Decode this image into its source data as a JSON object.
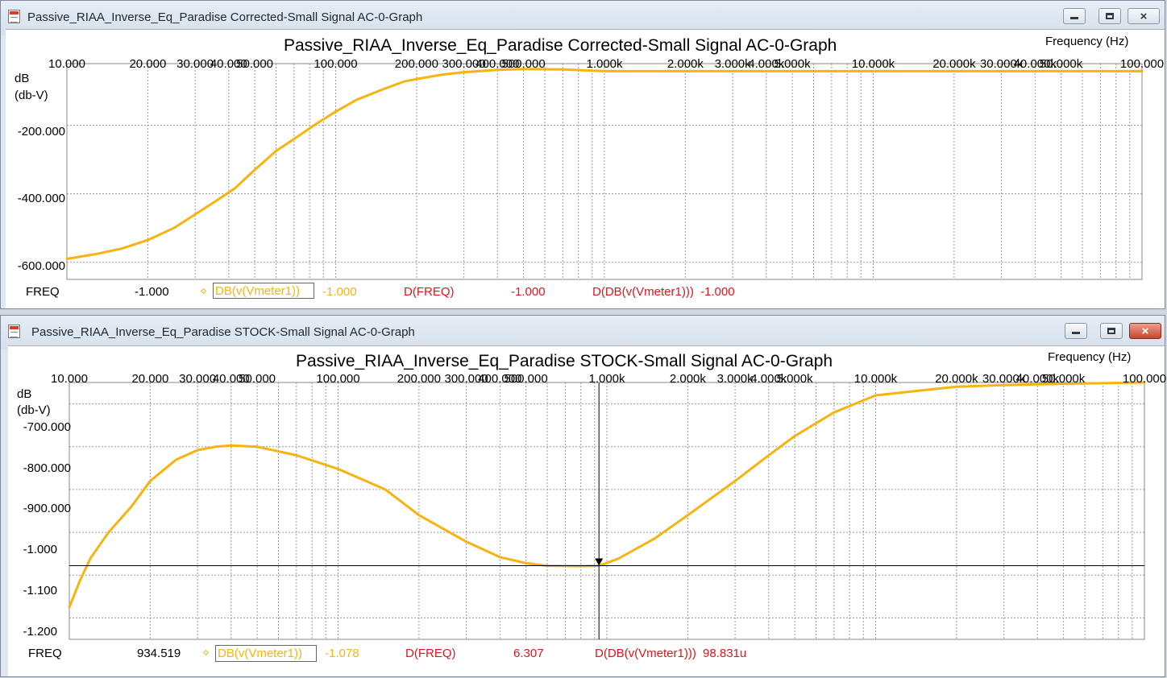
{
  "windows": [
    {
      "title": "Passive_RIAA_Inverse_Eq_Paradise Corrected-Small Signal AC-0-Graph",
      "graph_title": "Passive_RIAA_Inverse_Eq_Paradise Corrected-Small Signal AC-0-Graph",
      "x_axis_label": "Frequency  (Hz)",
      "y_unit_line1": "dB",
      "y_unit_line2": "(db-V)",
      "x_tick_labels": [
        "10.000",
        "20.000",
        "30.000",
        "40.000",
        "50.000",
        "100.000",
        "200.000",
        "300.000",
        "400.000",
        "500.000",
        "1.000k",
        "2.000k",
        "3.000k",
        "4.000k",
        "5.000k",
        "10.000k",
        "20.000k",
        "30.000k",
        "40.000k",
        "50.000k",
        "100.000"
      ],
      "y_tick_labels": [
        "-200.000",
        "-400.000",
        "-600.000"
      ],
      "legend": {
        "freq_label": "FREQ",
        "freq_value": "-1.000",
        "trace_name": "DB(v(Vmeter1))",
        "trace_value": "-1.000",
        "dfreq_label": "D(FREQ)",
        "dfreq_value": "-1.000",
        "dtrace_label": "D(DB(v(Vmeter1)))",
        "dtrace_value": "-1.000"
      },
      "active": false
    },
    {
      "title": "Passive_RIAA_Inverse_Eq_Paradise STOCK-Small Signal AC-0-Graph",
      "graph_title": "Passive_RIAA_Inverse_Eq_Paradise STOCK-Small Signal AC-0-Graph",
      "x_axis_label": "Frequency  (Hz)",
      "y_unit_line1": "dB",
      "y_unit_line2": "(db-V)",
      "x_tick_labels": [
        "10.000",
        "20.000",
        "30.000",
        "40.000",
        "50.000",
        "100.000",
        "200.000",
        "300.000",
        "400.000",
        "500.000",
        "1.000k",
        "2.000k",
        "3.000k",
        "4.000k",
        "5.000k",
        "10.000k",
        "20.000k",
        "30.000k",
        "40.000k",
        "50.000k",
        "100.000"
      ],
      "y_tick_labels": [
        "-700.000",
        "-800.000",
        "-900.000",
        "-1.000",
        "-1.100",
        "-1.200"
      ],
      "legend": {
        "freq_label": "FREQ",
        "freq_value": "934.519",
        "trace_name": "DB(v(Vmeter1))",
        "trace_value": "-1.078",
        "dfreq_label": "D(FREQ)",
        "dfreq_value": "6.307",
        "dtrace_label": "D(DB(v(Vmeter1)))",
        "dtrace_value": "98.831u"
      },
      "active": true
    }
  ],
  "chart_data": [
    {
      "type": "line",
      "title": "Passive_RIAA_Inverse_Eq_Paradise Corrected-Small Signal AC-0-Graph",
      "xlabel": "Frequency  (Hz)",
      "ylabel": "dB (db-V)",
      "x_scale": "log",
      "xlim": [
        10,
        100000
      ],
      "ylim": [
        -650,
        -20
      ],
      "grid": true,
      "series": [
        {
          "name": "DB(v(Vmeter1))",
          "color": "#f7b30f",
          "x": [
            10,
            13,
            16,
            20,
            25,
            30,
            36,
            42,
            50,
            60,
            70,
            85,
            100,
            120,
            150,
            180,
            200,
            250,
            300,
            400,
            500,
            700,
            1000,
            2000,
            5000,
            10000,
            30000,
            100000
          ],
          "y": [
            -590,
            -575,
            -560,
            -535,
            -500,
            -460,
            -420,
            -385,
            -330,
            -275,
            -240,
            -195,
            -160,
            -125,
            -95,
            -72,
            -65,
            -52,
            -45,
            -38,
            -36,
            -37,
            -42,
            -42,
            -42,
            -42,
            -42,
            -42
          ]
        }
      ]
    },
    {
      "type": "line",
      "title": "Passive_RIAA_Inverse_Eq_Paradise STOCK-Small Signal AC-0-Graph",
      "xlabel": "Frequency  (Hz)",
      "ylabel": "dB (db-V)",
      "x_scale": "log",
      "xlim": [
        10,
        100000
      ],
      "ylim": [
        -1250,
        -650
      ],
      "grid": true,
      "cursor": {
        "x": 934.519,
        "y": -1078
      },
      "series": [
        {
          "name": "DB(v(Vmeter1))",
          "color": "#f7b30f",
          "x": [
            10,
            11,
            12,
            14,
            17,
            20,
            25,
            30,
            35,
            40,
            50,
            70,
            100,
            150,
            200,
            300,
            400,
            500,
            600,
            800,
            934.5,
            1100,
            1500,
            2000,
            3000,
            4000,
            5000,
            7000,
            10000,
            15000,
            20000,
            30000,
            50000,
            100000
          ],
          "y": [
            -1175,
            -1110,
            -1060,
            -1000,
            -940,
            -880,
            -830,
            -808,
            -800,
            -797,
            -800,
            -820,
            -852,
            -900,
            -960,
            -1022,
            -1058,
            -1072,
            -1078,
            -1079,
            -1078,
            -1062,
            -1015,
            -960,
            -880,
            -820,
            -775,
            -720,
            -680,
            -668,
            -660,
            -656,
            -653,
            -650
          ]
        }
      ]
    }
  ]
}
